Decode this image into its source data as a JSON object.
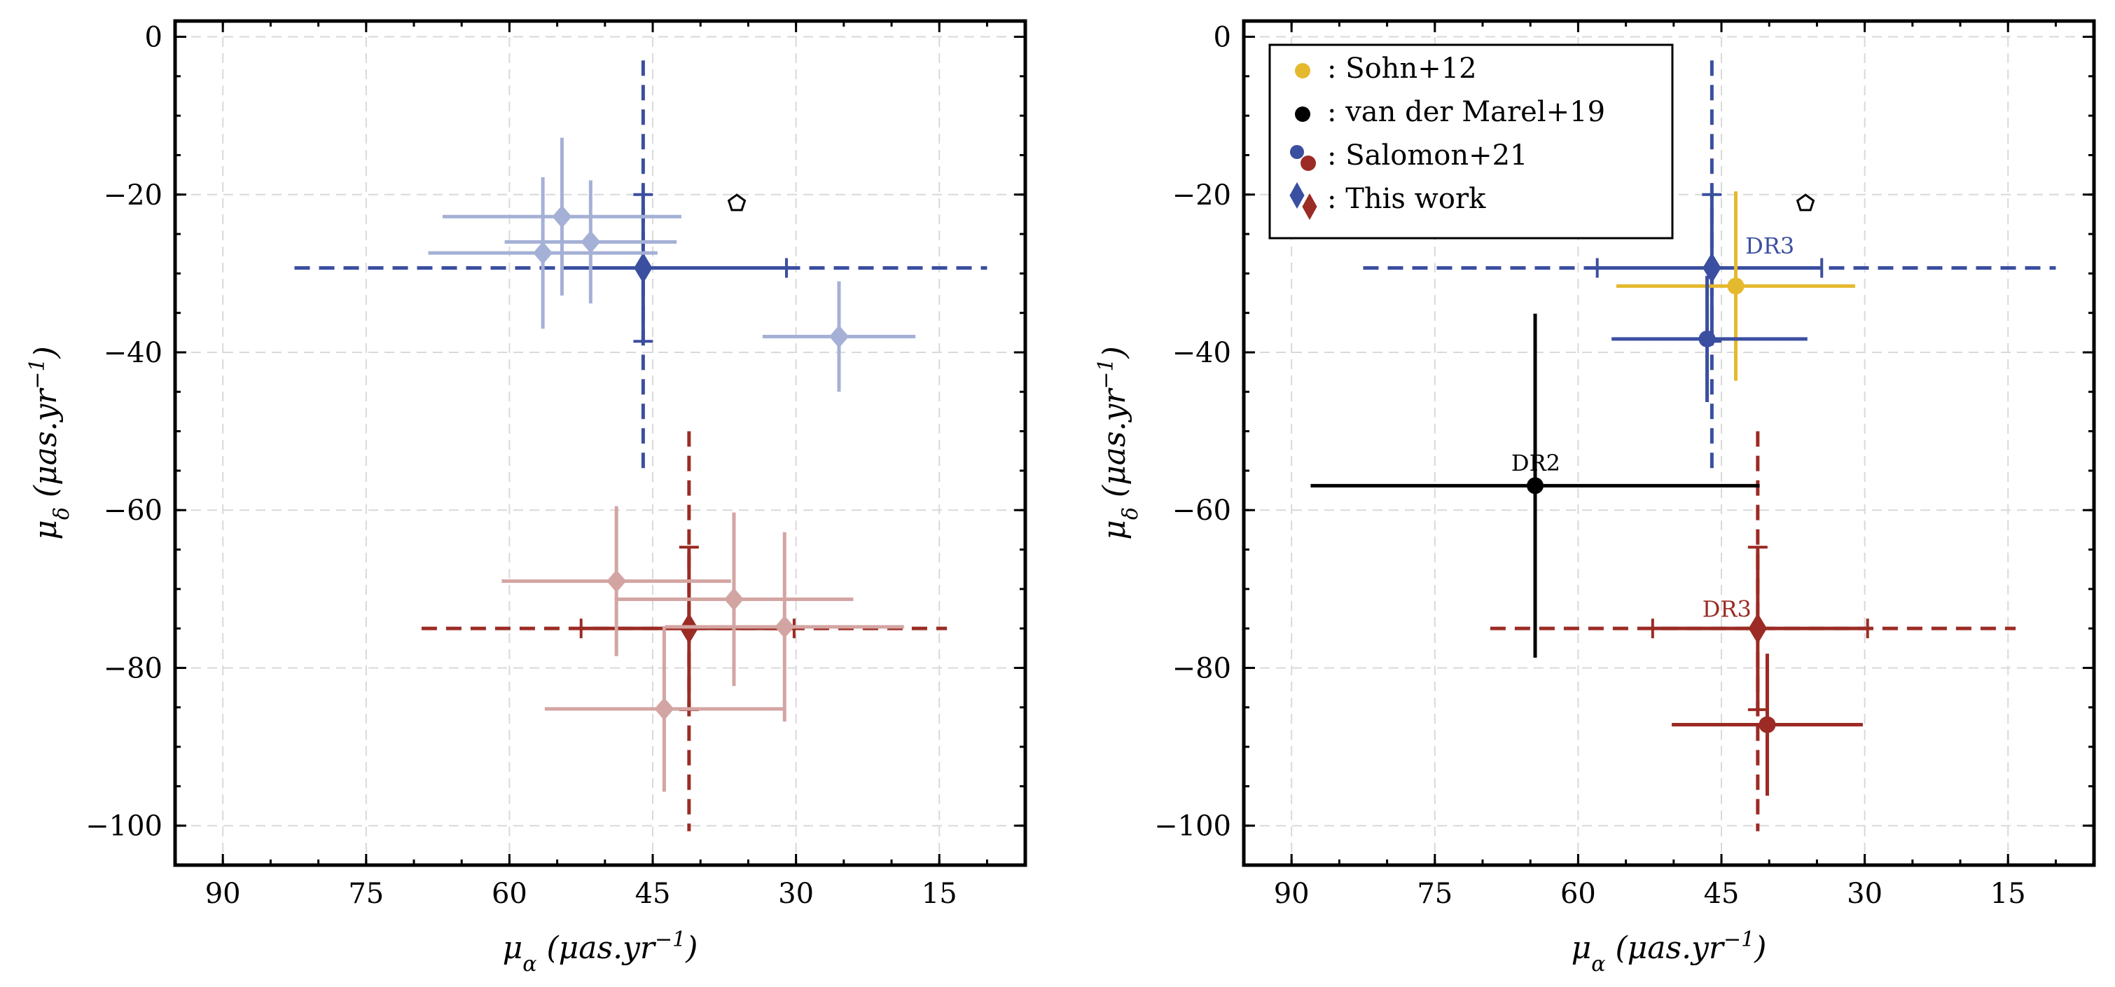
{
  "chart_data": [
    {
      "type": "scatter",
      "xlabel": "μα (μas.yr⁻¹)",
      "ylabel": "μδ (μas.yr⁻¹)",
      "xlim": [
        95,
        6
      ],
      "ylim": [
        -105,
        2
      ],
      "xticks": [
        90,
        75,
        60,
        45,
        30,
        15
      ],
      "yticks": [
        0,
        -20,
        -40,
        -60,
        -80,
        -100
      ],
      "grid": true,
      "series": [
        {
          "role": "this-work-blue-main",
          "marker": "diamond",
          "color": "#3b4fa0",
          "points": [
            {
              "x": 46,
              "y": -29.3,
              "xerr": [
                8.5,
                15
              ],
              "yerr": [
                9.3,
                9.3
              ],
              "xerr_sys": [
                36.5,
                36
              ],
              "yerr_sys": [
                26.3,
                26.2
              ]
            }
          ]
        },
        {
          "role": "this-work-red-main",
          "marker": "diamond",
          "color": "#9b2b24",
          "points": [
            {
              "x": 41.2,
              "y": -75,
              "xerr": [
                11.3,
                11
              ],
              "yerr": [
                10.3,
                10.3
              ],
              "xerr_sys": [
                28,
                27
              ],
              "yerr_sys": [
                25,
                25.7
              ]
            }
          ]
        },
        {
          "role": "blue-faded",
          "marker": "diamond",
          "color": "#a5b0d6",
          "points": [
            {
              "x": 54.5,
              "y": -22.8,
              "xerr": [
                12.5,
                12.5
              ],
              "yerr": [
                10,
                10
              ]
            },
            {
              "x": 51.5,
              "y": -26,
              "xerr": [
                9,
                9
              ],
              "yerr": [
                7.8,
                7.8
              ]
            },
            {
              "x": 56.5,
              "y": -27.4,
              "xerr": [
                12,
                12
              ],
              "yerr": [
                9.6,
                9.6
              ]
            },
            {
              "x": 25.5,
              "y": -38,
              "xerr": [
                8,
                8
              ],
              "yerr": [
                7,
                7
              ]
            }
          ]
        },
        {
          "role": "red-faded",
          "marker": "diamond",
          "color": "#d3a5a2",
          "points": [
            {
              "x": 48.8,
              "y": -69,
              "xerr": [
                12,
                12
              ],
              "yerr": [
                9.5,
                9.5
              ]
            },
            {
              "x": 36.5,
              "y": -71.3,
              "xerr": [
                12.5,
                12.5
              ],
              "yerr": [
                11,
                11
              ]
            },
            {
              "x": 31.2,
              "y": -74.8,
              "xerr": [
                12.5,
                12.5
              ],
              "yerr": [
                12,
                12
              ]
            },
            {
              "x": 43.8,
              "y": -85.2,
              "xerr": [
                12.5,
                12.5
              ],
              "yerr": [
                10.5,
                10.5
              ]
            }
          ]
        },
        {
          "role": "reference-point",
          "marker": "pentagon",
          "color": "#000000",
          "points": [
            {
              "x": 36.2,
              "y": -21.1
            }
          ]
        }
      ]
    },
    {
      "type": "scatter",
      "xlabel": "μα (μas.yr⁻¹)",
      "ylabel": "μδ (μas.yr⁻¹)",
      "xlim": [
        95,
        6
      ],
      "ylim": [
        -105,
        2
      ],
      "xticks": [
        90,
        75,
        60,
        45,
        30,
        15
      ],
      "yticks": [
        0,
        -20,
        -40,
        -60,
        -80,
        -100
      ],
      "grid": true,
      "legend_position": "top-left",
      "legend": [
        {
          "label": ": Sohn+12",
          "marker": "circle",
          "colors": [
            "#e5b92e"
          ]
        },
        {
          "label": ": van der Marel+19",
          "marker": "circle",
          "colors": [
            "#000000"
          ]
        },
        {
          "label": ": Salomon+21",
          "marker": "circle",
          "colors": [
            "#3b4fa0",
            "#9b2b24"
          ]
        },
        {
          "label": ": This work",
          "marker": "diamond",
          "colors": [
            "#3b4fa0",
            "#9b2b24"
          ]
        }
      ],
      "annotations": [
        {
          "text": "DR3",
          "x": 42.5,
          "y": -27.5,
          "color": "#3b4fa0"
        },
        {
          "text": "DR2",
          "x": 67,
          "y": -55,
          "color": "#000000"
        },
        {
          "text": "DR3",
          "x": 47,
          "y": -73.5,
          "color": "#9b2b24"
        }
      ],
      "series": [
        {
          "role": "this-work-blue",
          "marker": "diamond",
          "color": "#3b4fa0",
          "points": [
            {
              "x": 46,
              "y": -29.3,
              "xerr": [
                12,
                11.5
              ],
              "yerr": [
                9.3,
                9.3
              ],
              "xerr_sys": [
                36.5,
                36
              ],
              "yerr_sys": [
                26.3,
                26.2
              ]
            }
          ]
        },
        {
          "role": "this-work-red",
          "marker": "diamond",
          "color": "#9b2b24",
          "points": [
            {
              "x": 41.2,
              "y": -75,
              "xerr": [
                11,
                11.5
              ],
              "yerr": [
                10.3,
                10.3
              ],
              "xerr_sys": [
                28,
                27
              ],
              "yerr_sys": [
                25,
                25.7
              ]
            }
          ]
        },
        {
          "role": "sohn",
          "marker": "circle",
          "color": "#e5b92e",
          "points": [
            {
              "x": 43.5,
              "y": -31.6,
              "xerr": [
                12.5,
                12.5
              ],
              "yerr": [
                12,
                12
              ]
            }
          ]
        },
        {
          "role": "salomon-blue",
          "marker": "circle",
          "color": "#3b4fa0",
          "points": [
            {
              "x": 46.5,
              "y": -38.3,
              "xerr": [
                10,
                10.5
              ],
              "yerr": [
                8,
                8
              ]
            }
          ]
        },
        {
          "role": "salomon-red",
          "marker": "circle",
          "color": "#9b2b24",
          "points": [
            {
              "x": 40.2,
              "y": -87.2,
              "xerr": [
                10,
                10
              ],
              "yerr": [
                9,
                9
              ]
            }
          ]
        },
        {
          "role": "van-der-marel",
          "marker": "circle",
          "color": "#000000",
          "points": [
            {
              "x": 64.5,
              "y": -56.9,
              "xerr": [
                23.5,
                23.5
              ],
              "yerr": [
                21.8,
                21.8
              ]
            }
          ]
        },
        {
          "role": "reference-point",
          "marker": "pentagon",
          "color": "#000000",
          "points": [
            {
              "x": 36.2,
              "y": -21.1
            }
          ]
        }
      ]
    }
  ]
}
